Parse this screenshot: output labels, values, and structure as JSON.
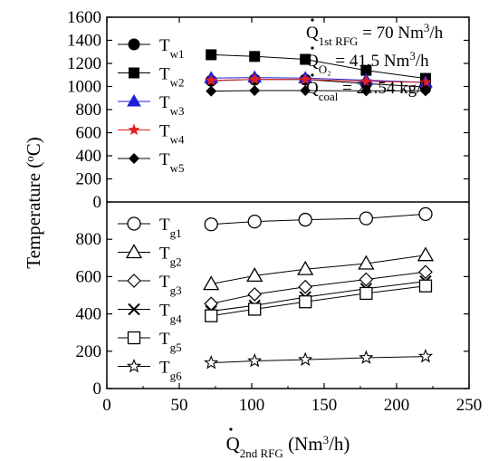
{
  "chart_data": {
    "type": "line",
    "x": [
      72,
      102,
      137,
      179,
      220
    ],
    "xlabel_base": "Q",
    "xlabel_sub": "2nd RFG",
    "xlabel_unit": " (Nm",
    "xlabel_sup": "3",
    "xlabel_end": "/h)",
    "ylabel": "Temperature (",
    "ylabel_sup": "o",
    "ylabel_end": "C)",
    "xlim": [
      0,
      250
    ],
    "xticks": [
      "0",
      "50",
      "100",
      "150",
      "200",
      "250"
    ],
    "top_panel": {
      "ylim": [
        0,
        1600
      ],
      "yticks": [
        "0",
        "200",
        "400",
        "600",
        "800",
        "1000",
        "1200",
        "1400",
        "1600"
      ],
      "series": [
        {
          "name_base": "T",
          "name_sub": "w1",
          "marker": "circle-filled",
          "color": "#000000",
          "values": [
            1050,
            1060,
            1060,
            1025,
            995
          ]
        },
        {
          "name_base": "T",
          "name_sub": "w2",
          "marker": "square-filled",
          "color": "#000000",
          "values": [
            1275,
            1260,
            1235,
            1140,
            1070
          ]
        },
        {
          "name_base": "T",
          "name_sub": "w3",
          "marker": "triangle-filled",
          "color": "#1f1fd6",
          "values": [
            1072,
            1078,
            1072,
            1055,
            1035
          ]
        },
        {
          "name_base": "T",
          "name_sub": "w4",
          "marker": "star-filled",
          "color": "#e02020",
          "values": [
            1052,
            1062,
            1060,
            1045,
            1035
          ]
        },
        {
          "name_base": "T",
          "name_sub": "w5",
          "marker": "diamond-filled",
          "color": "#000000",
          "values": [
            960,
            965,
            965,
            962,
            962
          ]
        }
      ]
    },
    "bottom_panel": {
      "ylim": [
        0,
        1000
      ],
      "yticks": [
        "0",
        "200",
        "400",
        "600",
        "800"
      ],
      "series": [
        {
          "name_base": "T",
          "name_sub": "g1",
          "marker": "circle-open",
          "color": "#000000",
          "values": [
            880,
            895,
            905,
            912,
            935
          ]
        },
        {
          "name_base": "T",
          "name_sub": "g2",
          "marker": "triangle-open",
          "color": "#000000",
          "values": [
            560,
            605,
            640,
            670,
            715
          ]
        },
        {
          "name_base": "T",
          "name_sub": "g3",
          "marker": "diamond-open",
          "color": "#000000",
          "values": [
            455,
            505,
            545,
            585,
            625
          ]
        },
        {
          "name_base": "T",
          "name_sub": "g4",
          "marker": "x",
          "color": "#000000",
          "values": [
            415,
            445,
            490,
            535,
            575
          ]
        },
        {
          "name_base": "T",
          "name_sub": "g5",
          "marker": "square-open",
          "color": "#000000",
          "values": [
            390,
            425,
            465,
            510,
            550
          ]
        },
        {
          "name_base": "T",
          "name_sub": "g6",
          "marker": "star-open",
          "color": "#000000",
          "values": [
            138,
            148,
            155,
            165,
            172
          ]
        }
      ]
    },
    "annotations": [
      {
        "base": "Q",
        "sub": "1st RFG",
        "rest": " = 70 Nm",
        "sup": "3",
        "end": "/h"
      },
      {
        "base": "Q",
        "sub": "O₂",
        "rest": " = 41.5 Nm",
        "sup": "3",
        "end": "/h"
      },
      {
        "base": "Q",
        "sub": "coal",
        "rest": " = 21.54 kg/h",
        "sup": "",
        "end": ""
      }
    ]
  }
}
